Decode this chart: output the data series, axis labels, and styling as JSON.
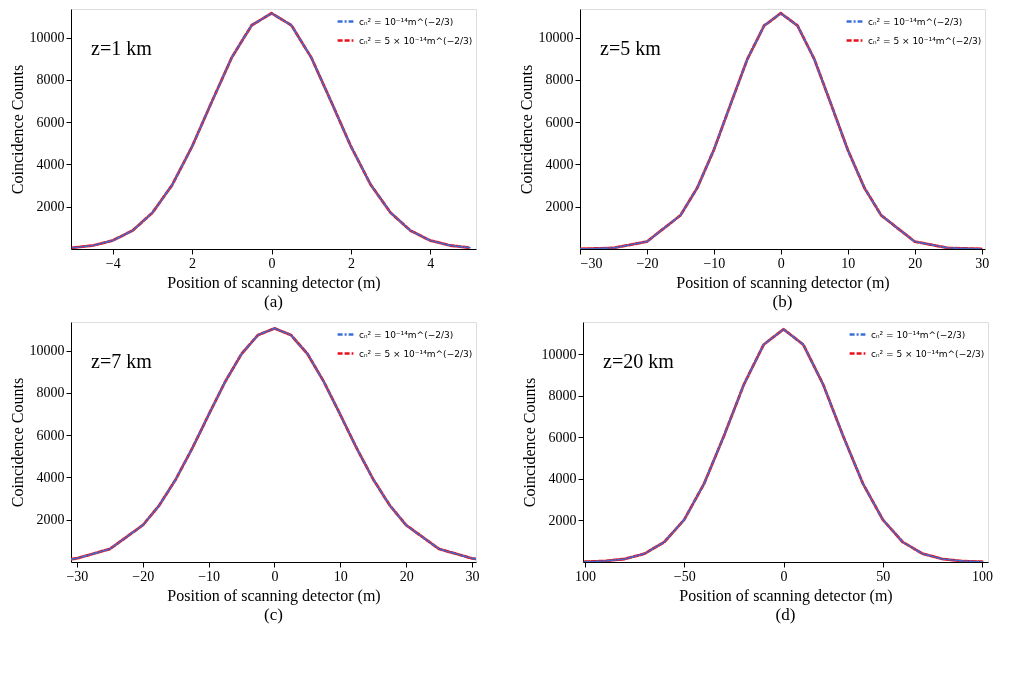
{
  "chart_data": [
    {
      "type": "line",
      "title": "(a)",
      "xlabel": "Position of scanning detector (m)",
      "ylabel": "Coincidence Counts",
      "annotations": [
        "z=1 km"
      ],
      "xlim": [
        -5.05,
        5.15
      ],
      "ylim": [
        0,
        11350
      ],
      "xticks": [
        -4,
        {
          "value": -2,
          "label": "2"
        },
        0,
        2,
        4
      ],
      "yticks": [
        2000,
        4000,
        6000,
        8000,
        10000
      ],
      "legend": "top right",
      "series": [
        {
          "name": "cₙ² = 10⁻¹⁴m^(−2/3)",
          "color": "#3a6fd8",
          "line_style": "dashdot",
          "x": [
            -5,
            -4.5,
            -4,
            -3.5,
            -3,
            -2.5,
            -2,
            -1.5,
            -1,
            -0.5,
            0,
            0.5,
            1,
            1.5,
            2,
            2.5,
            3,
            3.5,
            4,
            4.5,
            5
          ],
          "values": [
            60,
            165,
            400,
            870,
            1715,
            3035,
            4850,
            6980,
            9060,
            10580,
            11150,
            10580,
            9060,
            6980,
            4850,
            3035,
            1715,
            870,
            400,
            165,
            60
          ]
        },
        {
          "name": "cₙ² = 5 × 10⁻¹⁴m^(−2/3)",
          "color": "#e8101a",
          "line_style": "dashed",
          "x": [
            -5,
            -4.5,
            -4,
            -3.5,
            -3,
            -2.5,
            -2,
            -1.5,
            -1,
            -0.5,
            0,
            0.5,
            1,
            1.5,
            2,
            2.5,
            3,
            3.5,
            4,
            4.5,
            5
          ],
          "values": [
            60,
            165,
            400,
            870,
            1715,
            3035,
            4850,
            6980,
            9060,
            10580,
            11150,
            10580,
            9060,
            6980,
            4850,
            3035,
            1715,
            870,
            400,
            165,
            60
          ]
        }
      ]
    },
    {
      "type": "line",
      "title": "(b)",
      "xlabel": "Position of scanning detector (m)",
      "ylabel": "Coincidence Counts",
      "annotations": [
        "z=5 km"
      ],
      "xlim": [
        -30,
        30.5
      ],
      "ylim": [
        0,
        11350
      ],
      "xticks": [
        -30,
        -20,
        -10,
        0,
        10,
        20,
        30
      ],
      "yticks": [
        2000,
        4000,
        6000,
        8000,
        10000
      ],
      "legend": "top right",
      "series": [
        {
          "name": "cₙ² = 10⁻¹⁴m^(−2/3)",
          "color": "#3a6fd8",
          "line_style": "dashdot",
          "x": [
            -30,
            -25,
            -20,
            -15,
            -12.5,
            -10,
            -7.5,
            -5,
            -2.5,
            0,
            2.5,
            5,
            7.5,
            10,
            12.5,
            15,
            20,
            25,
            30
          ],
          "values": [
            5,
            50,
            350,
            1590,
            2880,
            4690,
            6850,
            8980,
            10560,
            11150,
            10560,
            8980,
            6850,
            4690,
            2880,
            1590,
            350,
            50,
            5
          ]
        },
        {
          "name": "cₙ² = 5 × 10⁻¹⁴m^(−2/3)",
          "color": "#e8101a",
          "line_style": "dashed",
          "x": [
            -30,
            -25,
            -20,
            -15,
            -12.5,
            -10,
            -7.5,
            -5,
            -2.5,
            0,
            2.5,
            5,
            7.5,
            10,
            12.5,
            15,
            20,
            25,
            30
          ],
          "values": [
            5,
            50,
            350,
            1590,
            2880,
            4690,
            6850,
            8980,
            10560,
            11150,
            10560,
            8980,
            6850,
            4690,
            2880,
            1590,
            350,
            50,
            5
          ]
        }
      ]
    },
    {
      "type": "line",
      "title": "(c)",
      "xlabel": "Position of scanning detector (m)",
      "ylabel": "Coincidence Counts",
      "annotations": [
        "z=7 km"
      ],
      "xlim": [
        -30.9,
        30.6
      ],
      "ylim": [
        0,
        11350
      ],
      "xticks": [
        -30,
        -20,
        -10,
        0,
        10,
        20,
        30
      ],
      "yticks": [
        2000,
        4000,
        6000,
        8000,
        10000
      ],
      "legend": "top right",
      "series": [
        {
          "name": "cₙ² = 10⁻¹⁴m^(−2/3)",
          "color": "#3a6fd8",
          "line_style": "dashdot",
          "x": [
            -30.9,
            -30,
            -25,
            -20,
            -17.5,
            -15,
            -12.5,
            -10,
            -7.5,
            -5,
            -2.5,
            0,
            2.5,
            5,
            7.5,
            10,
            12.5,
            15,
            17.5,
            20,
            25,
            30,
            30.6
          ],
          "values": [
            134,
            172,
            615,
            1740,
            2680,
            3905,
            5370,
            6960,
            8520,
            9845,
            10735,
            11050,
            10735,
            9845,
            8520,
            6960,
            5370,
            3905,
            2680,
            1740,
            615,
            172,
            146
          ]
        },
        {
          "name": "cₙ² = 5 × 10⁻¹⁴m^(−2/3)",
          "color": "#e8101a",
          "line_style": "dashed",
          "x": [
            -30.9,
            -30,
            -25,
            -20,
            -17.5,
            -15,
            -12.5,
            -10,
            -7.5,
            -5,
            -2.5,
            0,
            2.5,
            5,
            7.5,
            10,
            12.5,
            15,
            17.5,
            20,
            25,
            30,
            30.6
          ],
          "values": [
            134,
            172,
            615,
            1740,
            2680,
            3905,
            5370,
            6960,
            8520,
            9845,
            10735,
            11050,
            10735,
            9845,
            8520,
            6960,
            5370,
            3905,
            2680,
            1740,
            615,
            172,
            146
          ]
        }
      ]
    },
    {
      "type": "line",
      "title": "(d)",
      "xlabel": "Position of scanning detector (m)",
      "ylabel": "Coincidence Counts",
      "annotations": [
        "z=20 km"
      ],
      "xlim": [
        -101,
        103
      ],
      "ylim": [
        0,
        11550
      ],
      "xticks": [
        {
          "value": -100,
          "label": "100"
        },
        -50,
        0,
        50,
        100
      ],
      "yticks": [
        2000,
        4000,
        6000,
        8000,
        10000
      ],
      "legend": "top right",
      "series": [
        {
          "name": "cₙ² = 10⁻¹⁴m^(−2/3)",
          "color": "#3a6fd8",
          "line_style": "dashdot",
          "x": [
            -100,
            -90,
            -80,
            -70,
            -60,
            -50,
            -40,
            -30,
            -20,
            -10,
            0,
            10,
            20,
            30,
            40,
            50,
            60,
            70,
            80,
            90,
            100
          ],
          "values": [
            12,
            45,
            145,
            400,
            965,
            2040,
            3770,
            6070,
            8535,
            10460,
            11200,
            10460,
            8535,
            6070,
            3770,
            2040,
            965,
            400,
            145,
            45,
            12
          ]
        },
        {
          "name": "cₙ² = 5 × 10⁻¹⁴m^(−2/3)",
          "color": "#e8101a",
          "line_style": "dashed",
          "x": [
            -100,
            -90,
            -80,
            -70,
            -60,
            -50,
            -40,
            -30,
            -20,
            -10,
            0,
            10,
            20,
            30,
            40,
            50,
            60,
            70,
            80,
            90,
            100
          ],
          "values": [
            12,
            45,
            145,
            400,
            965,
            2040,
            3770,
            6070,
            8535,
            10460,
            11200,
            10460,
            8535,
            6070,
            3770,
            2040,
            965,
            400,
            145,
            45,
            12
          ]
        }
      ]
    }
  ]
}
